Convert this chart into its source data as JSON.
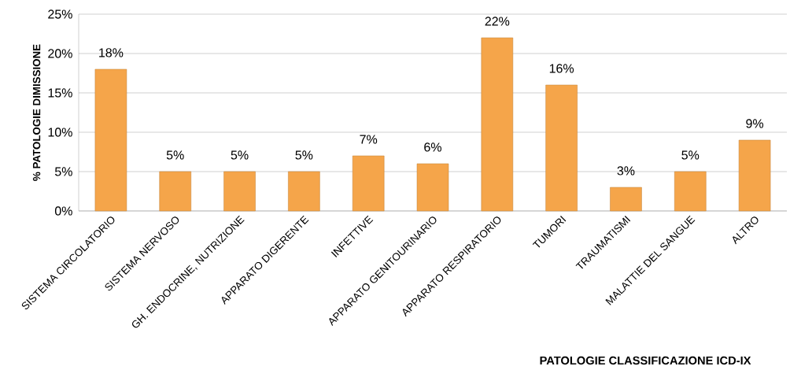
{
  "chart_data": {
    "type": "bar",
    "xlabel": "PATOLOGIE CLASSIFICAZIONE ICD-IX",
    "ylabel": "% PATOLOGIE DIMISSIONE",
    "categories": [
      "SISTEMA CIRCOLATORIO",
      "SISTEMA NERVOSO",
      "GH. ENDOCRINE, NUTRIZIONE",
      "APPARATO DIGERENTE",
      "INFETTIVE",
      "APPARATO GENITOURINARIO",
      "APPARATO RESPIRATORIO",
      "TUMORI",
      "TRAUMATISMI",
      "MALATTIE DEL SANGUE",
      "ALTRO"
    ],
    "values": [
      18,
      5,
      5,
      5,
      7,
      6,
      22,
      16,
      3,
      5,
      9
    ],
    "value_labels": [
      "18%",
      "5%",
      "5%",
      "5%",
      "7%",
      "6%",
      "22%",
      "16%",
      "3%",
      "5%",
      "9%"
    ],
    "color": "#f5a54a",
    "ylim": [
      0,
      25
    ],
    "yticks": [
      {
        "value": 0,
        "label": "0%"
      },
      {
        "value": 5,
        "label": "5%"
      },
      {
        "value": 10,
        "label": "10%"
      },
      {
        "value": 15,
        "label": "15%"
      },
      {
        "value": 20,
        "label": "20%"
      },
      {
        "value": 25,
        "label": "25%"
      }
    ],
    "grid": "y"
  }
}
